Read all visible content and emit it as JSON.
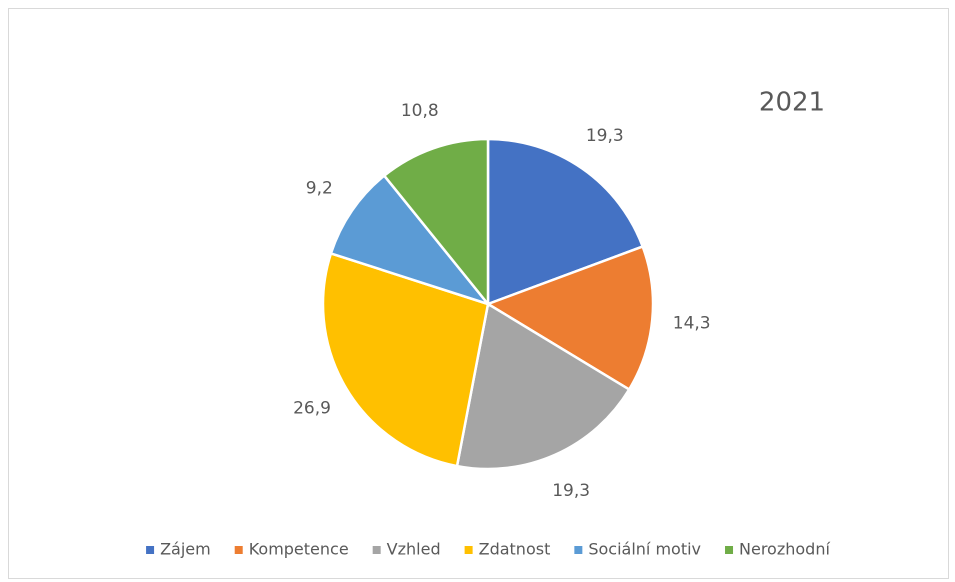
{
  "chart_data": {
    "type": "pie",
    "title": "2021",
    "categories": [
      "Zájem",
      "Kompetence",
      "Vzhled",
      "Zdatnost",
      "Sociální motiv",
      "Nerozhodní"
    ],
    "values": [
      19.3,
      14.3,
      19.3,
      26.9,
      9.2,
      10.8
    ],
    "value_labels": [
      "19,3",
      "14,3",
      "19,3",
      "26,9",
      "9,2",
      "10,8"
    ],
    "colors": [
      "#4472c4",
      "#ed7d31",
      "#a5a5a5",
      "#ffc000",
      "#5b9bd5",
      "#70ad47"
    ],
    "legend": "bottom"
  }
}
